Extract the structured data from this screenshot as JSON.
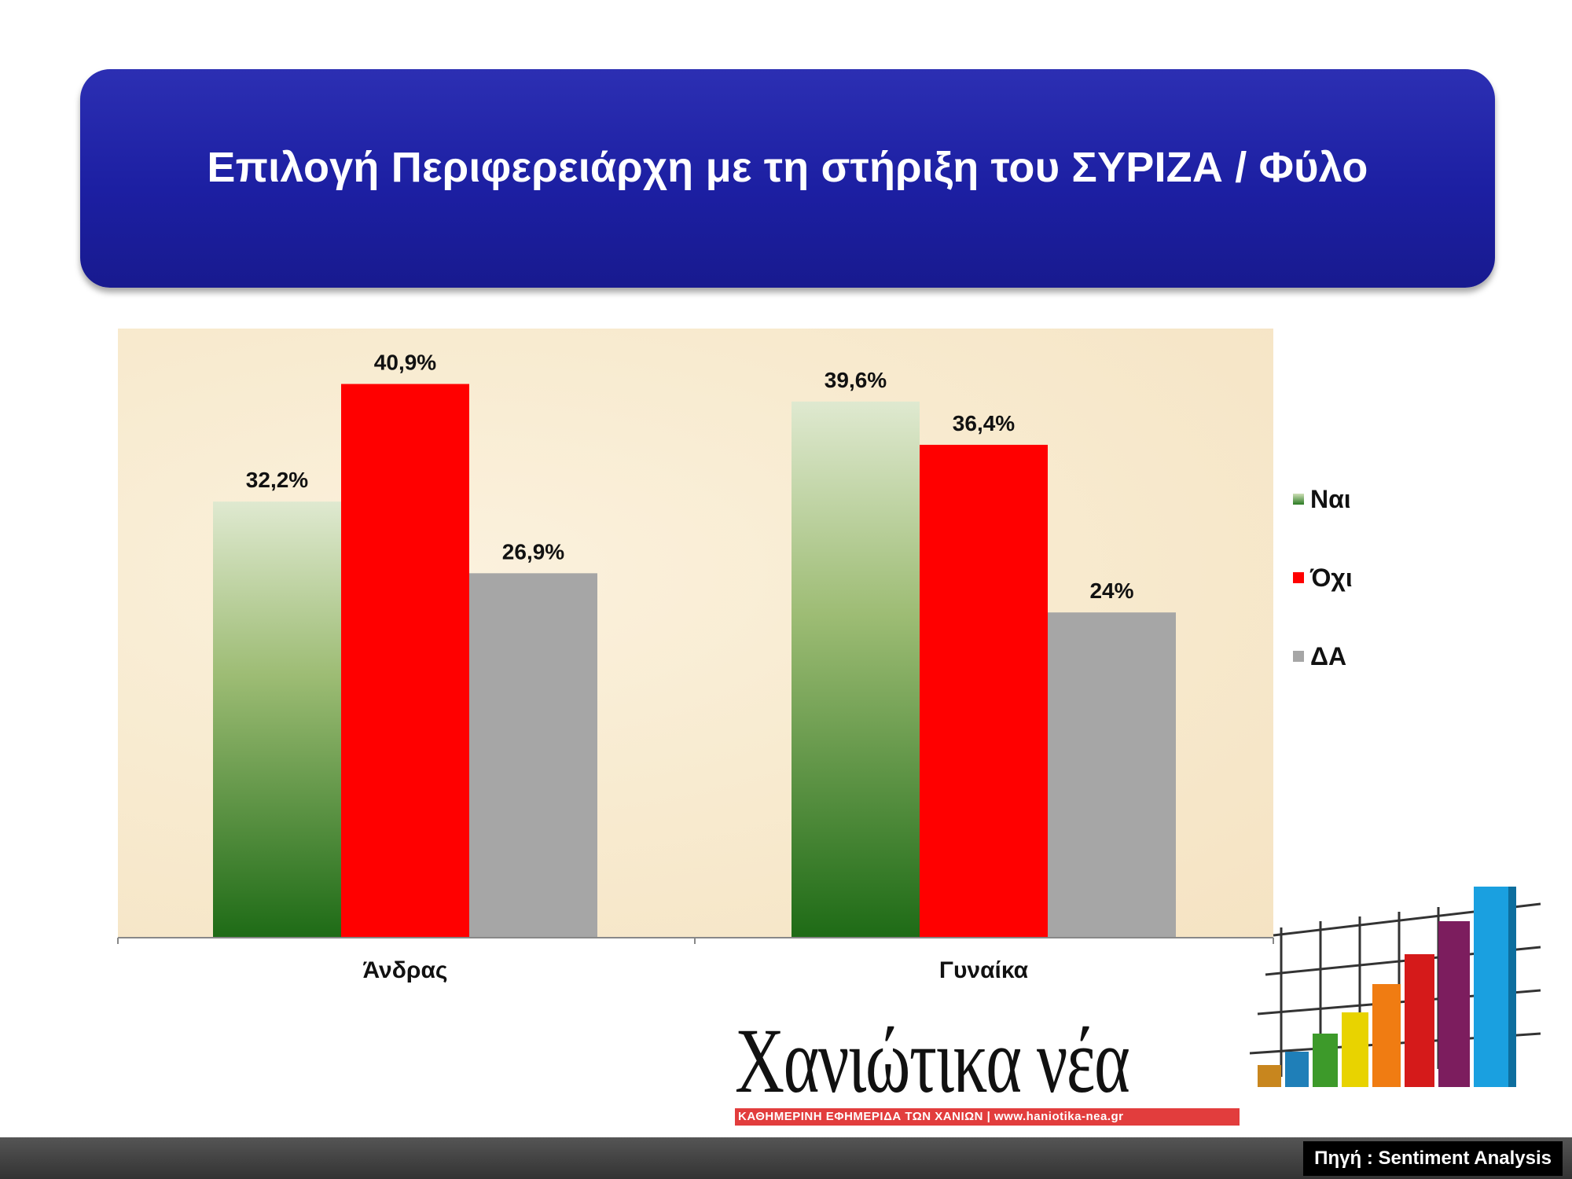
{
  "title": "Επιλογή Περιφερειάρχη με τη στήριξη του ΣΥΡΙΖΑ / Φύλο",
  "chart_data": {
    "type": "bar",
    "categories": [
      "Άνδρας",
      "Γυναίκα"
    ],
    "series": [
      {
        "name": "Ναι",
        "values": [
          32.2,
          39.6
        ],
        "labels": [
          "32,2%",
          "39,6%"
        ],
        "color": "#2a7a22"
      },
      {
        "name": "Όχι",
        "values": [
          40.9,
          36.4
        ],
        "labels": [
          "40,9%",
          "36,4%"
        ],
        "color": "#ff0000"
      },
      {
        "name": "ΔΑ",
        "values": [
          26.9,
          24.0
        ],
        "labels": [
          "26,9%",
          "24%"
        ],
        "color": "#a6a6a6"
      }
    ],
    "ylim": [
      0,
      45
    ],
    "grid": false,
    "legend_position": "right"
  },
  "logo": {
    "name": "Χανιώτικα νέα",
    "tagline": "ΚΑΘΗΜΕΡΙΝΗ ΕΦΗΜΕΡΙΔΑ ΤΩΝ ΧΑΝΙΩΝ   |   www.haniotika-nea.gr"
  },
  "source": "Πηγή : Sentiment Analysis"
}
